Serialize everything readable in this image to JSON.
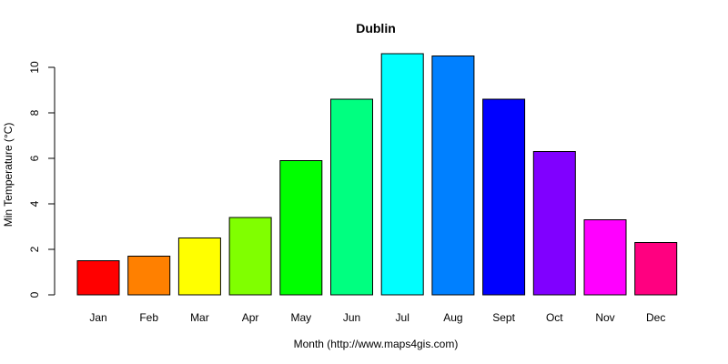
{
  "chart_data": {
    "type": "bar",
    "title": "Dublin",
    "xlabel": "Month (http://www.maps4gis.com)",
    "ylabel": "Min Temperature (°C)",
    "categories": [
      "Jan",
      "Feb",
      "Mar",
      "Apr",
      "May",
      "Jun",
      "Jul",
      "Aug",
      "Sept",
      "Oct",
      "Nov",
      "Dec"
    ],
    "values": [
      1.5,
      1.7,
      2.5,
      3.4,
      5.9,
      8.6,
      10.6,
      10.5,
      8.6,
      6.3,
      3.3,
      2.3
    ],
    "colors": [
      "#FF0000",
      "#FF8000",
      "#FFFF00",
      "#80FF00",
      "#00FF00",
      "#00FF80",
      "#00FFFF",
      "#0080FF",
      "#0000FF",
      "#8000FF",
      "#FF00FF",
      "#FF0080"
    ],
    "yticks": [
      0,
      2,
      4,
      6,
      8,
      10
    ],
    "ylim": [
      0,
      10.6
    ],
    "grid": false,
    "legend": "none"
  }
}
